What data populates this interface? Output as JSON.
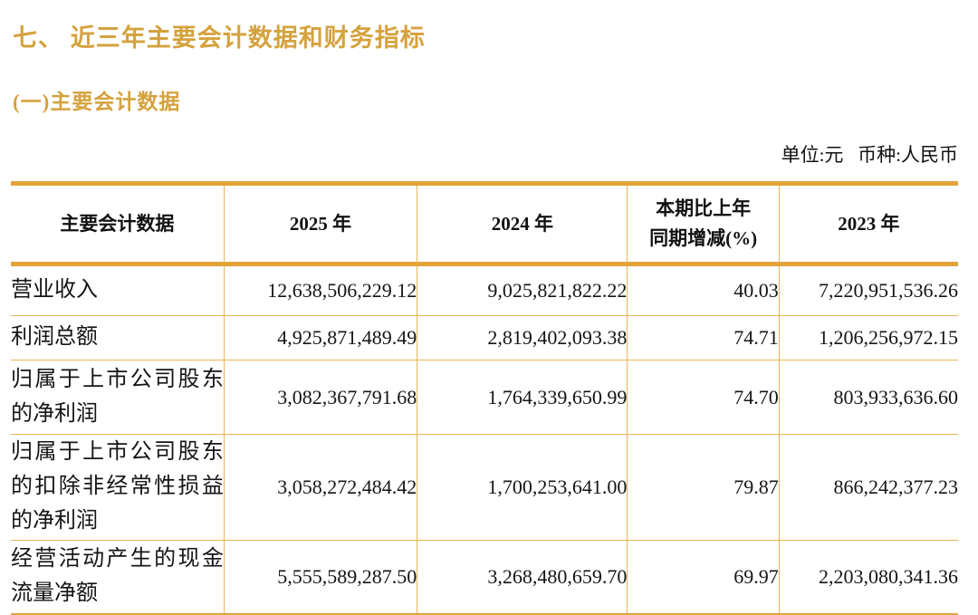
{
  "page": {
    "section_title": "七、 近三年主要会计数据和财务指标",
    "subsection_title": "(一)主要会计数据",
    "unit_note": "单位:元   币种:人民币"
  },
  "colors": {
    "accent_heading": "#D5A23E",
    "border_thick": "#E2A339",
    "border_thin": "#ECB457",
    "text": "#151515"
  },
  "table": {
    "columns": [
      "主要会计数据",
      "2025 年",
      "2024 年",
      "本期比上年\n同期增减(%)",
      "2023 年"
    ],
    "rows": [
      {
        "label": "营业收入",
        "values": [
          "12,638,506,229.12",
          "9,025,821,822.22",
          "40.03",
          "7,220,951,536.26"
        ]
      },
      {
        "label": "利润总额",
        "values": [
          "4,925,871,489.49",
          "2,819,402,093.38",
          "74.71",
          "1,206,256,972.15"
        ]
      },
      {
        "label": "归属于上市公司股东的净利润",
        "values": [
          "3,082,367,791.68",
          "1,764,339,650.99",
          "74.70",
          "803,933,636.60"
        ]
      },
      {
        "label": "归属于上市公司股东的扣除非经常性损益的净利润",
        "values": [
          "3,058,272,484.42",
          "1,700,253,641.00",
          "79.87",
          "866,242,377.23"
        ]
      },
      {
        "label": "经营活动产生的现金流量净额",
        "values": [
          "5,555,589,287.50",
          "3,268,480,659.70",
          "69.97",
          "2,203,080,341.36"
        ]
      }
    ]
  }
}
